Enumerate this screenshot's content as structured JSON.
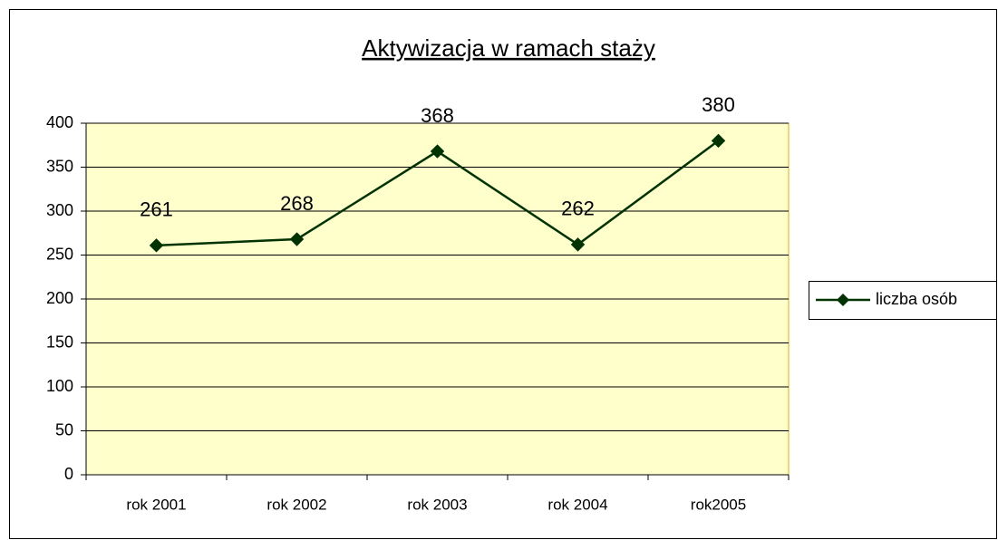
{
  "chart_data": {
    "type": "line",
    "title": "Aktywizacja w ramach staży",
    "categories": [
      "rok 2001",
      "rok 2002",
      "rok 2003",
      "rok 2004",
      "rok2005"
    ],
    "series": [
      {
        "name": "liczba osób",
        "color": "#003300",
        "values": [
          261,
          268,
          368,
          262,
          380
        ]
      }
    ],
    "ylim": [
      0,
      400
    ],
    "yticks": [
      0,
      50,
      100,
      150,
      200,
      250,
      300,
      350,
      400
    ],
    "grid": true,
    "legend": "right",
    "plot_background": "#ffffcc"
  }
}
